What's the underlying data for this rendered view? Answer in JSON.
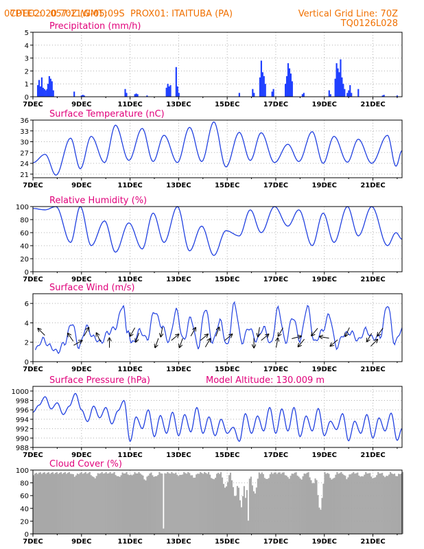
{
  "header": {
    "line1_left": "CPTEC:",
    "line1_coords": "057:11W-05:09S",
    "line1_site": "PROX01: ITAITUBA (PA)",
    "line2_left": "07DEC2020 70Z (GMT)",
    "line2_right": "Vertical Grid Line: 70Z",
    "line3_right": "TQ0126L028"
  },
  "colors": {
    "header": "#f07000",
    "title": "#e0007a",
    "series": "#2040e0",
    "bars": "#2040ff",
    "cloud": "#a8a8a8",
    "grid": "#b0b0b0"
  },
  "x_axis": {
    "ticks": [
      "7DEC",
      "9DEC",
      "11DEC",
      "13DEC",
      "15DEC",
      "17DEC",
      "19DEC",
      "21DEC"
    ],
    "start_day": 7,
    "end_day": 22.2
  },
  "chart_data": [
    {
      "type": "bar",
      "title": "Precipitation (mm/h)",
      "ylim": [
        0,
        5
      ],
      "yticks": [
        0,
        1,
        2,
        3,
        4,
        5
      ],
      "events": [
        {
          "day": 7.2,
          "values": [
            0.9,
            1.3,
            0.8,
            1.5,
            0.7,
            0.6,
            0.5,
            0.6,
            0.4
          ]
        },
        {
          "day": 7.62,
          "values": [
            1.0,
            1.6,
            1.4,
            1.2,
            0.5
          ]
        },
        {
          "day": 8.7,
          "values": [
            0.4
          ]
        },
        {
          "day": 9.0,
          "values": [
            0.1,
            0.15,
            0.1
          ]
        },
        {
          "day": 10.8,
          "values": [
            0.6,
            0.3
          ]
        },
        {
          "day": 11.2,
          "values": [
            0.2,
            0.25,
            0.2
          ]
        },
        {
          "day": 11.7,
          "values": [
            0.1
          ]
        },
        {
          "day": 12.5,
          "values": [
            0.7,
            1.0,
            0.8,
            0.9
          ]
        },
        {
          "day": 12.9,
          "values": [
            2.3,
            0.8,
            0.3
          ]
        },
        {
          "day": 15.5,
          "values": [
            0.3
          ]
        },
        {
          "day": 16.05,
          "values": [
            0.6,
            0.3
          ]
        },
        {
          "day": 16.35,
          "values": [
            1.5,
            2.8,
            1.9,
            1.6,
            1.0
          ]
        },
        {
          "day": 16.85,
          "values": [
            0.4,
            0.6
          ]
        },
        {
          "day": 17.4,
          "values": [
            1.0,
            1.6,
            2.6,
            2.2,
            1.8,
            1.2
          ]
        },
        {
          "day": 18.1,
          "values": [
            0.2,
            0.3
          ]
        },
        {
          "day": 19.2,
          "values": [
            0.5,
            0.2
          ]
        },
        {
          "day": 19.45,
          "values": [
            1.4,
            2.6,
            2.2,
            1.9,
            2.9,
            1.5,
            1.0,
            0.6
          ]
        },
        {
          "day": 19.95,
          "values": [
            0.3,
            0.5,
            0.9,
            0.3
          ]
        },
        {
          "day": 20.4,
          "values": [
            0.6
          ]
        },
        {
          "day": 21.4,
          "values": [
            0.1,
            0.15
          ]
        },
        {
          "day": 22.0,
          "values": [
            0.1
          ]
        }
      ]
    },
    {
      "type": "line",
      "title": "Surface Temperature (nC)",
      "ylim": [
        20,
        36
      ],
      "yticks": [
        21,
        24,
        27,
        30,
        33,
        36
      ],
      "min_day": [
        7.95,
        8.95,
        9.95,
        10.95,
        11.95,
        12.95,
        13.95,
        14.95,
        15.95,
        16.95,
        17.95,
        18.95,
        19.95,
        20.95,
        21.95
      ],
      "max_day": [
        7.5,
        8.55,
        9.4,
        10.4,
        11.5,
        12.4,
        13.45,
        14.45,
        15.5,
        16.4,
        17.5,
        18.5,
        19.4,
        20.4,
        21.6
      ],
      "mins": [
        20.7,
        22.5,
        24.2,
        24.8,
        24.5,
        24.2,
        24.5,
        23.0,
        24.8,
        24.2,
        24.5,
        24.0,
        24.3,
        24.0,
        23.2
      ],
      "maxs": [
        26.5,
        31.0,
        31.5,
        34.6,
        33.7,
        31.8,
        34.0,
        35.5,
        32.6,
        32.5,
        29.3,
        32.8,
        31.5,
        30.7,
        31.8
      ]
    },
    {
      "type": "line",
      "title": "Relative Humidity (%)",
      "ylim": [
        0,
        100
      ],
      "yticks": [
        0,
        20,
        40,
        60,
        80,
        100
      ],
      "high_day": [
        7.95,
        8.95,
        9.95,
        10.95,
        11.95,
        12.95,
        13.95,
        14.95,
        15.95,
        16.95,
        17.95,
        18.95,
        19.95,
        20.95,
        21.95
      ],
      "low_day": [
        7.5,
        8.55,
        9.4,
        10.4,
        11.5,
        12.4,
        13.45,
        14.45,
        15.5,
        16.4,
        17.5,
        18.5,
        19.4,
        20.4,
        21.6
      ],
      "highs": [
        100,
        100,
        78,
        75,
        90,
        100,
        70,
        63,
        95,
        100,
        95,
        90,
        100,
        100,
        60
      ],
      "lows": [
        95,
        45,
        40,
        30,
        35,
        45,
        32,
        25,
        55,
        60,
        70,
        40,
        45,
        55,
        40
      ]
    },
    {
      "type": "line",
      "title": "Surface Wind (m/s)",
      "ylim": [
        0,
        7
      ],
      "yticks": [
        0,
        2,
        4,
        6
      ],
      "x": [
        7.1,
        7.4,
        7.7,
        8.0,
        8.3,
        8.6,
        8.9,
        9.2,
        9.5,
        9.8,
        10.1,
        10.4,
        10.7,
        10.9,
        11.1,
        11.4,
        11.7,
        12.0,
        12.3,
        12.6,
        12.9,
        13.2,
        13.5,
        13.8,
        14.1,
        14.4,
        14.7,
        15.0,
        15.3,
        15.6,
        15.9,
        16.2,
        16.5,
        16.8,
        17.1,
        17.4,
        17.7,
        18.0,
        18.3,
        18.6,
        18.9,
        19.2,
        19.5,
        19.8,
        20.1,
        20.4,
        20.7,
        21.0,
        21.3,
        21.6,
        21.9,
        22.2
      ],
      "values": [
        1.2,
        2.3,
        1.6,
        1.0,
        1.9,
        4.0,
        1.5,
        3.6,
        2.5,
        2.0,
        3.0,
        3.5,
        5.8,
        3.0,
        1.9,
        3.2,
        2.3,
        5.2,
        3.7,
        2.1,
        5.3,
        2.2,
        4.5,
        1.5,
        5.5,
        2.0,
        4.2,
        1.6,
        6.0,
        2.0,
        3.5,
        2.2,
        3.5,
        1.8,
        5.5,
        2.0,
        4.6,
        2.2,
        5.7,
        2.0,
        3.1,
        4.8,
        1.5,
        2.8,
        3.0,
        2.2,
        3.3,
        2.4,
        2.6,
        5.9,
        1.9,
        3.4
      ],
      "arrows": [
        {
          "day": 7.35,
          "dir": 135
        },
        {
          "day": 8.55,
          "dir": 125
        },
        {
          "day": 8.85,
          "dir": 30
        },
        {
          "day": 9.2,
          "dir": 60
        },
        {
          "day": 9.7,
          "dir": 115
        },
        {
          "day": 10.15,
          "dir": 90
        },
        {
          "day": 11.1,
          "dir": 240
        },
        {
          "day": 11.3,
          "dir": 250
        },
        {
          "day": 12.1,
          "dir": 250
        },
        {
          "day": 12.3,
          "dir": 260
        },
        {
          "day": 12.85,
          "dir": 40
        },
        {
          "day": 13.1,
          "dir": 250
        },
        {
          "day": 13.6,
          "dir": 60
        },
        {
          "day": 14.05,
          "dir": 40
        },
        {
          "day": 14.2,
          "dir": 60
        },
        {
          "day": 14.6,
          "dir": 70
        },
        {
          "day": 15.05,
          "dir": 40
        },
        {
          "day": 16.1,
          "dir": 270
        },
        {
          "day": 16.3,
          "dir": 260
        },
        {
          "day": 16.55,
          "dir": 40
        },
        {
          "day": 17.05,
          "dir": 80
        },
        {
          "day": 17.2,
          "dir": 240
        },
        {
          "day": 17.85,
          "dir": 15
        },
        {
          "day": 18.05,
          "dir": 230
        },
        {
          "day": 18.6,
          "dir": 230
        },
        {
          "day": 19.0,
          "dir": 170
        },
        {
          "day": 19.4,
          "dir": 220
        },
        {
          "day": 19.95,
          "dir": 245
        },
        {
          "day": 20.85,
          "dir": 240
        },
        {
          "day": 21.05,
          "dir": 45
        },
        {
          "day": 21.3,
          "dir": 235
        }
      ]
    },
    {
      "type": "line",
      "title": "Surface Pressure (hPa)",
      "annotation": "Model Altitude: 130.009 m",
      "ylim": [
        988,
        1001
      ],
      "yticks": [
        988,
        990,
        992,
        994,
        996,
        998,
        1000
      ],
      "x": [
        7.0,
        7.25,
        7.5,
        7.75,
        8.0,
        8.25,
        8.5,
        8.75,
        9.0,
        9.25,
        9.5,
        9.75,
        10.0,
        10.25,
        10.5,
        10.75,
        11.0,
        11.25,
        11.5,
        11.75,
        12.0,
        12.25,
        12.5,
        12.75,
        13.0,
        13.25,
        13.5,
        13.75,
        14.0,
        14.25,
        14.5,
        14.75,
        15.0,
        15.25,
        15.5,
        15.75,
        16.0,
        16.25,
        16.5,
        16.75,
        17.0,
        17.25,
        17.5,
        17.75,
        18.0,
        18.25,
        18.5,
        18.75,
        19.0,
        19.25,
        19.5,
        19.75,
        20.0,
        20.25,
        20.5,
        20.75,
        21.0,
        21.25,
        21.5,
        21.75,
        22.0,
        22.2
      ],
      "values": [
        995.5,
        997.0,
        998.8,
        996.2,
        997.5,
        995.0,
        996.8,
        999.5,
        996.0,
        993.5,
        996.8,
        994.3,
        996.5,
        993.0,
        995.8,
        998.0,
        989.3,
        994.5,
        992.0,
        996.0,
        990.3,
        994.8,
        991.0,
        995.5,
        990.5,
        995.0,
        991.3,
        996.5,
        991.0,
        994.5,
        990.5,
        994.0,
        991.0,
        992.3,
        989.3,
        995.2,
        991.0,
        994.7,
        991.5,
        996.5,
        991.0,
        996.2,
        991.5,
        996.5,
        990.3,
        994.7,
        991.5,
        996.3,
        990.5,
        993.6,
        991.8,
        995.2,
        989.4,
        993.6,
        991.0,
        995.0,
        990.0,
        994.3,
        991.5,
        995.3,
        989.5,
        992.0
      ]
    },
    {
      "type": "bar",
      "title": "Cloud Cover (%)",
      "ylim": [
        0,
        100
      ],
      "yticks": [
        0,
        20,
        40,
        60,
        80,
        100
      ],
      "base_level": 97,
      "dips": [
        {
          "day": 7.0,
          "value": 95
        },
        {
          "day": 8.7,
          "value": 92
        },
        {
          "day": 9.5,
          "value": 88
        },
        {
          "day": 10.5,
          "value": 90
        },
        {
          "day": 11.0,
          "value": 93
        },
        {
          "day": 11.6,
          "value": 85
        },
        {
          "day": 12.0,
          "value": 90
        },
        {
          "day": 12.35,
          "value": 5
        },
        {
          "day": 13.0,
          "value": 92
        },
        {
          "day": 13.6,
          "value": 89
        },
        {
          "day": 14.4,
          "value": 85
        },
        {
          "day": 14.9,
          "value": 70
        },
        {
          "day": 15.3,
          "value": 55
        },
        {
          "day": 15.55,
          "value": 40
        },
        {
          "day": 15.75,
          "value": 20
        },
        {
          "day": 15.85,
          "value": 2
        },
        {
          "day": 16.1,
          "value": 60
        },
        {
          "day": 16.6,
          "value": 85
        },
        {
          "day": 17.5,
          "value": 88
        },
        {
          "day": 18.0,
          "value": 86
        },
        {
          "day": 18.5,
          "value": 78
        },
        {
          "day": 18.8,
          "value": 30
        },
        {
          "day": 19.3,
          "value": 85
        },
        {
          "day": 19.9,
          "value": 88
        },
        {
          "day": 20.5,
          "value": 90
        },
        {
          "day": 21.0,
          "value": 87
        },
        {
          "day": 21.5,
          "value": 90
        },
        {
          "day": 21.95,
          "value": 92
        }
      ]
    }
  ]
}
